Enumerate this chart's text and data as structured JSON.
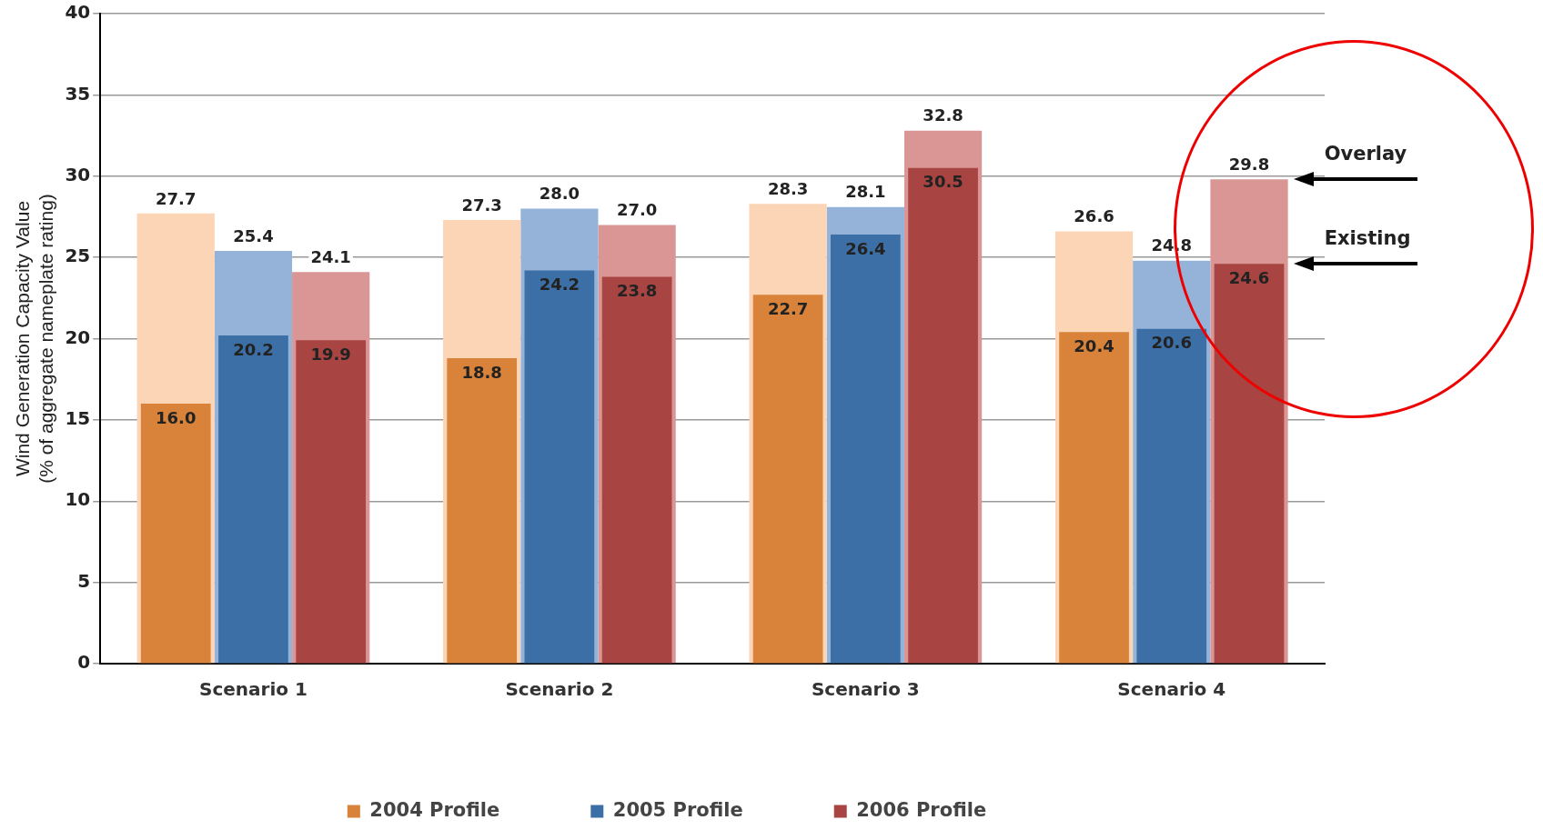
{
  "chart_data": {
    "type": "bar",
    "ylabel": "Wind Generation Capacity Value\n(% of aggregate nameplate rating)",
    "categories": [
      "Scenario 1",
      "Scenario 2",
      "Scenario 3",
      "Scenario 4"
    ],
    "series": [
      {
        "color": "#fbd5b5",
        "values": [
          27.7,
          27.3,
          28.3,
          26.6
        ],
        "value_labels": [
          "27.7",
          "27.3",
          "28.3",
          "26.6"
        ]
      },
      {
        "name": "2004 Profile",
        "color": "#d9833a",
        "values": [
          16.0,
          18.8,
          22.7,
          20.4
        ],
        "value_labels": [
          "16.0",
          "18.8",
          "22.7",
          "20.4"
        ]
      },
      {
        "color": "#95b3d9",
        "values": [
          25.4,
          28.0,
          28.1,
          24.8
        ],
        "value_labels": [
          "25.4",
          "28.0",
          "28.1",
          "24.8"
        ]
      },
      {
        "name": "2005 Profile",
        "color": "#3c6fa6",
        "values": [
          20.2,
          24.2,
          26.4,
          20.6
        ],
        "value_labels": [
          "20.2",
          "24.2",
          "26.4",
          "20.6"
        ]
      },
      {
        "color": "#d99694",
        "values": [
          24.1,
          27.0,
          32.8,
          29.8
        ],
        "value_labels": [
          "24.1",
          "27.0",
          "32.8",
          "29.8"
        ]
      },
      {
        "name": "2006 Profile",
        "color": "#a84442",
        "values": [
          19.9,
          23.8,
          30.5,
          24.6
        ],
        "value_labels": [
          "19.9",
          "23.8",
          "30.5",
          "24.6"
        ]
      }
    ],
    "ylim": [
      0,
      40
    ],
    "yticks": [
      0,
      5,
      10,
      15,
      20,
      25,
      30,
      35,
      40
    ],
    "grid": "y",
    "legend": "bottom",
    "annotations": [
      "Overlay",
      "Existing"
    ]
  }
}
